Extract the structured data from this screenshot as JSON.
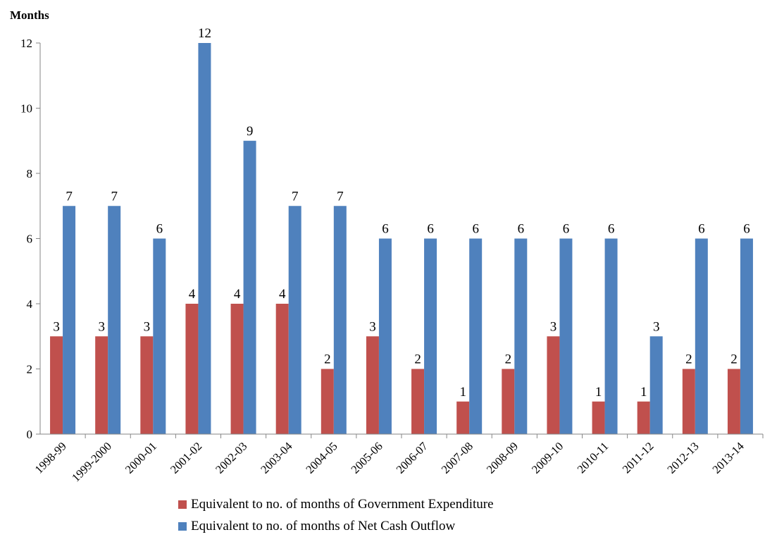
{
  "chart_data": {
    "type": "bar",
    "ylabel": "Months",
    "xlabel": "",
    "ylim": [
      0,
      12
    ],
    "yticks": [
      "0",
      "2",
      "4",
      "6",
      "8",
      "10",
      "12"
    ],
    "categories": [
      "1998-99",
      "1999-2000",
      "2000-01",
      "2001-02",
      "2002-03",
      "2003-04",
      "2004-05",
      "2005-06",
      "2006-07",
      "2007-08",
      "2008-09",
      "2009-10",
      "2010-11",
      "2011-12",
      "2012-13",
      "2013-14"
    ],
    "series": [
      {
        "name": "Equivalent to no. of months of Government Expenditure",
        "color": "#c0504d",
        "values": [
          3,
          3,
          3,
          4,
          4,
          4,
          2,
          3,
          2,
          1,
          2,
          3,
          1,
          1,
          2,
          2
        ]
      },
      {
        "name": "Equivalent to no. of months of Net Cash Outflow",
        "color": "#4f81bd",
        "values": [
          7,
          7,
          6,
          12,
          9,
          7,
          7,
          6,
          6,
          6,
          6,
          6,
          6,
          3,
          6,
          6
        ]
      }
    ],
    "data_labels": true,
    "grid": false,
    "legend_position": "bottom"
  }
}
